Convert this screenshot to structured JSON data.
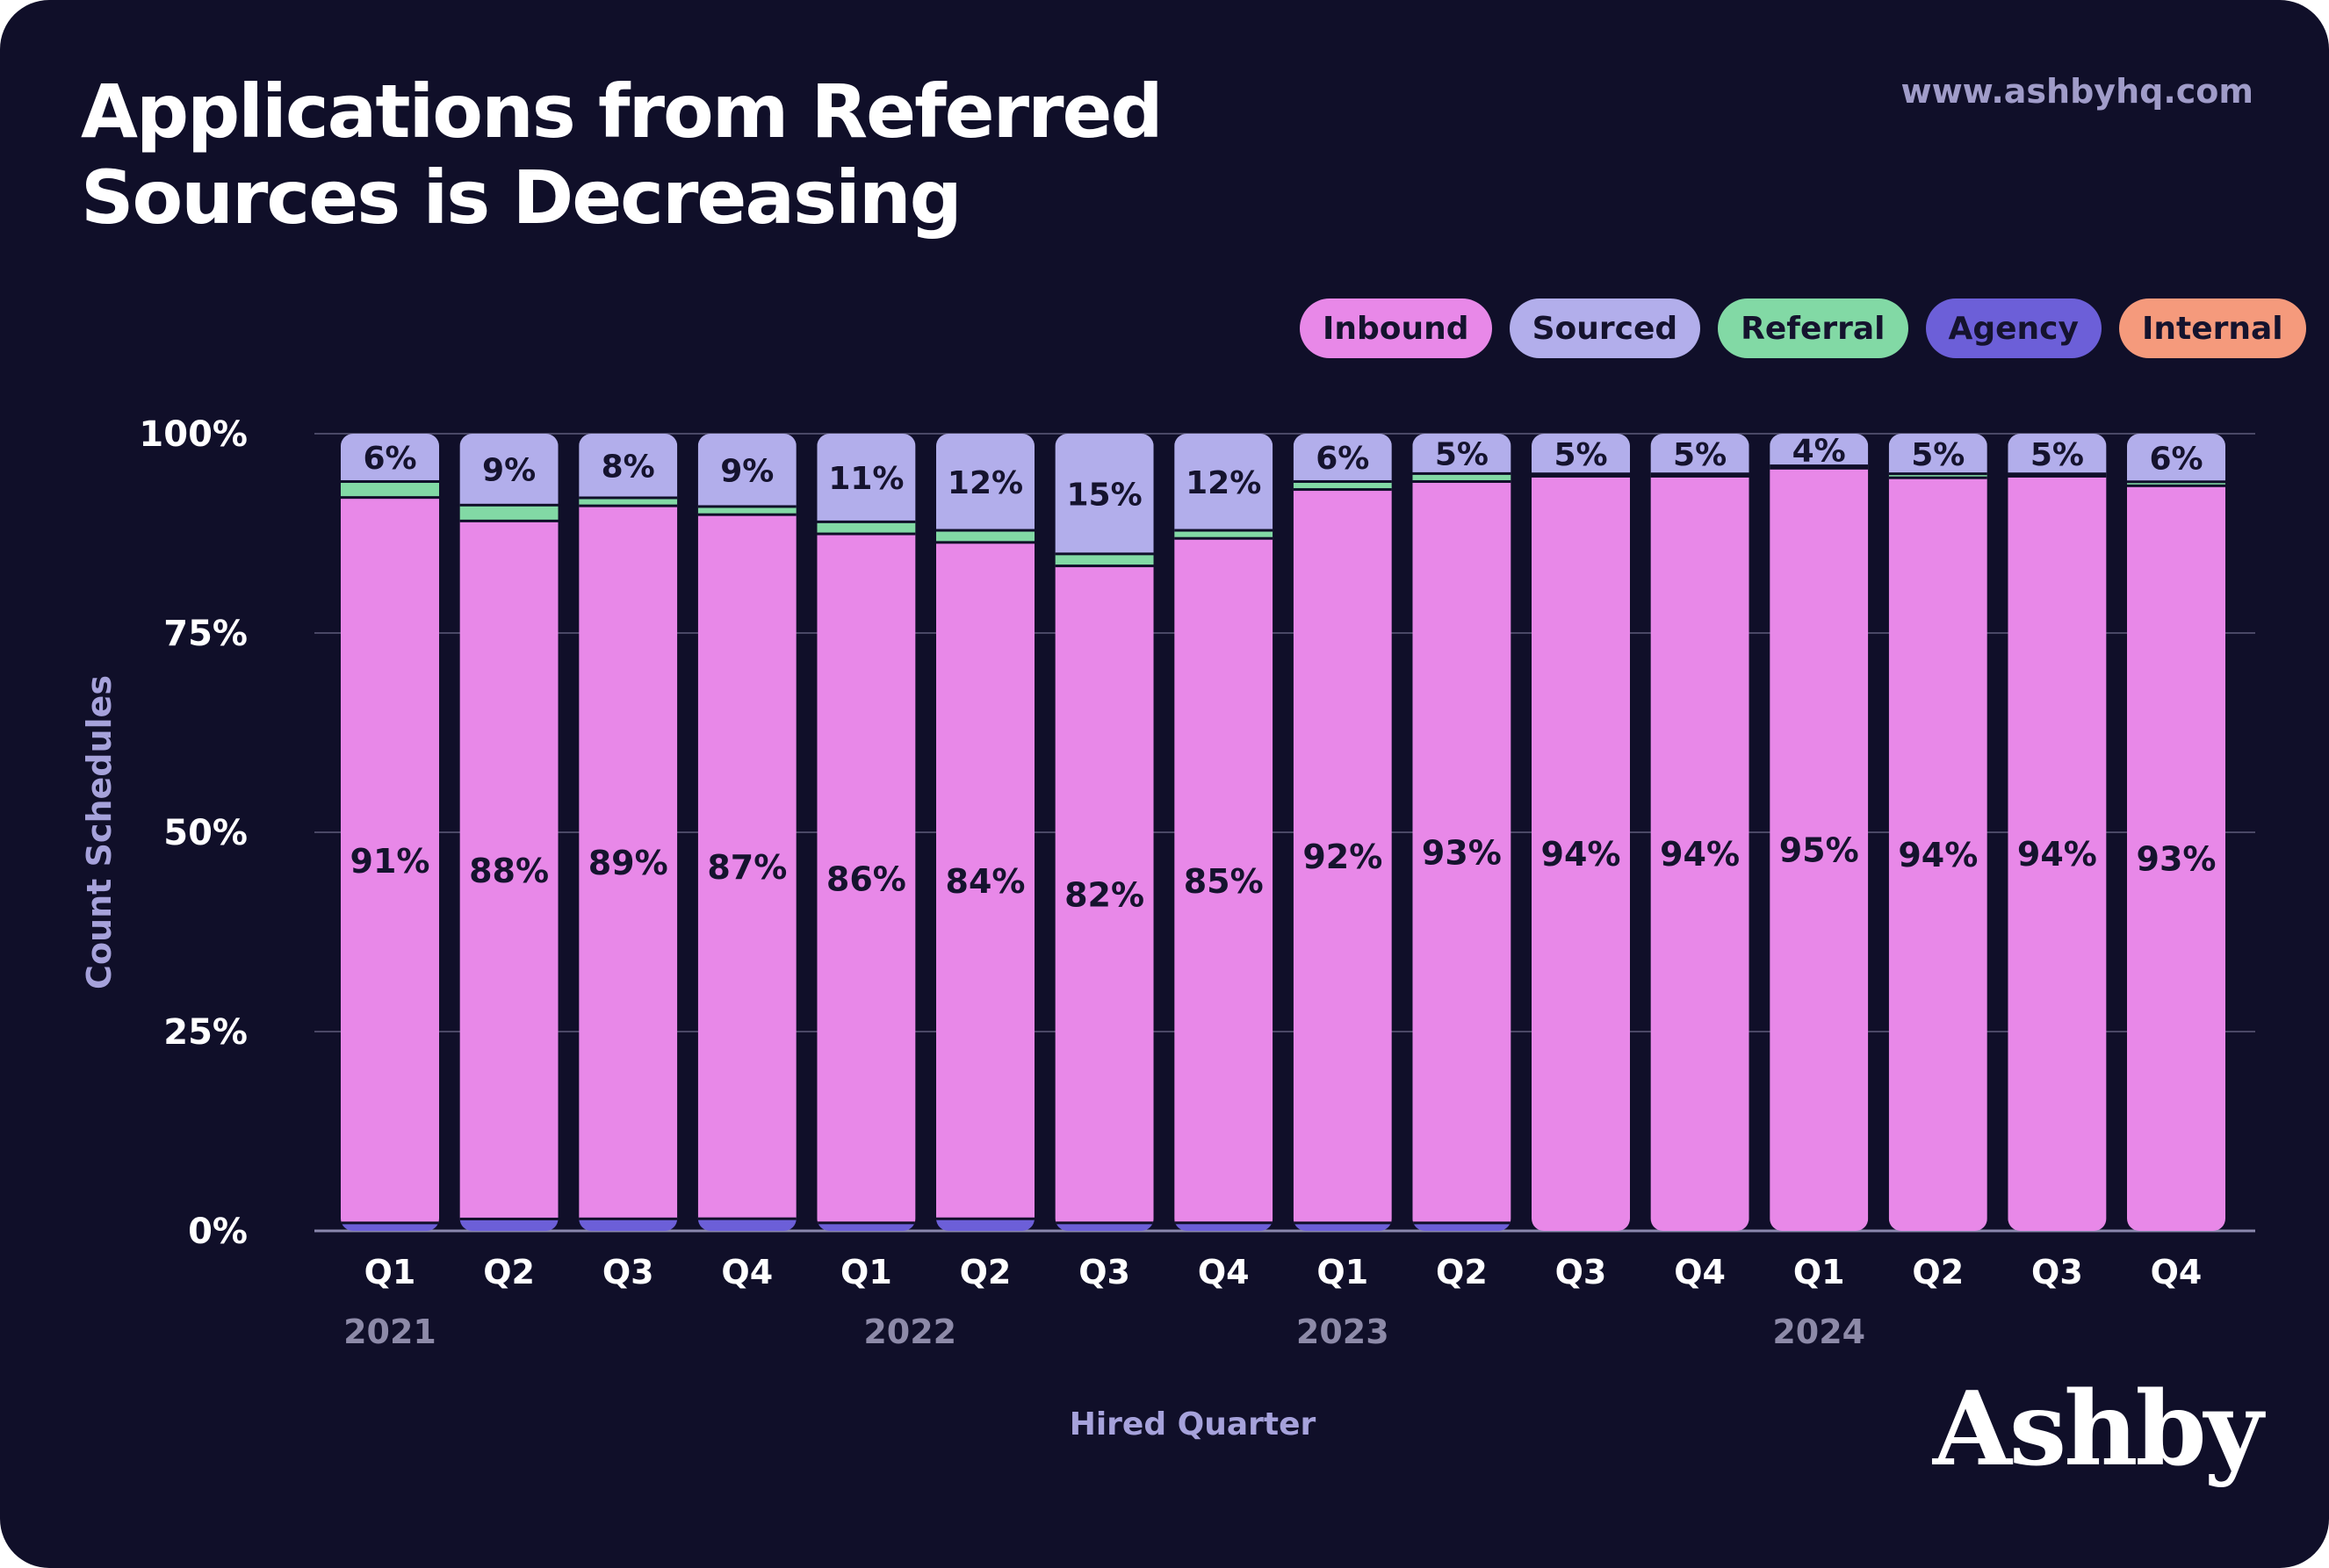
{
  "header": {
    "title_line1": "Applications from Referred",
    "title_line2": "Sources is Decreasing",
    "website": "www.ashbyhq.com",
    "brand": "Ashby"
  },
  "legend": [
    {
      "label": "Inbound",
      "color": "#e888e8"
    },
    {
      "label": "Sourced",
      "color": "#b2aeeb"
    },
    {
      "label": "Referral",
      "color": "#82d9a5"
    },
    {
      "label": "Agency",
      "color": "#6c5fd8"
    },
    {
      "label": "Internal",
      "color": "#f59a7c"
    }
  ],
  "chart_data": {
    "type": "bar",
    "stacked": true,
    "title": "Applications from Referred Sources is Decreasing",
    "xlabel": "Hired Quarter",
    "ylabel": "Count Schedules",
    "ylim": [
      0,
      100
    ],
    "y_ticks": [
      "0%",
      "25%",
      "50%",
      "75%",
      "100%"
    ],
    "grid": true,
    "legend_position": "top-right",
    "categories": [
      "Q1",
      "Q2",
      "Q3",
      "Q4",
      "Q1",
      "Q2",
      "Q3",
      "Q4",
      "Q1",
      "Q2",
      "Q3",
      "Q4",
      "Q1",
      "Q2",
      "Q3",
      "Q4"
    ],
    "year_groups": [
      {
        "label": "2021",
        "start": 0,
        "end": 3
      },
      {
        "label": "2022",
        "start": 4,
        "end": 7
      },
      {
        "label": "2023",
        "start": 8,
        "end": 11
      },
      {
        "label": "2024",
        "start": 12,
        "end": 15
      }
    ],
    "series": [
      {
        "name": "Inbound",
        "color": "#e888e8",
        "values": [
          91,
          88,
          89,
          87,
          86,
          84,
          82,
          85,
          92,
          93,
          94,
          94,
          95,
          94,
          94,
          93
        ],
        "labels": [
          "91%",
          "88%",
          "89%",
          "87%",
          "86%",
          "84%",
          "82%",
          "85%",
          "92%",
          "93%",
          "94%",
          "94%",
          "95%",
          "94%",
          "94%",
          "93%"
        ]
      },
      {
        "name": "Sourced",
        "color": "#b2aeeb",
        "values": [
          6,
          9,
          8,
          9,
          11,
          12,
          15,
          12,
          6,
          5,
          5,
          5,
          4,
          5,
          5,
          6
        ],
        "labels": [
          "6%",
          "9%",
          "8%",
          "9%",
          "11%",
          "12%",
          "15%",
          "12%",
          "6%",
          "5%",
          "5%",
          "5%",
          "4%",
          "5%",
          "5%",
          "6%"
        ]
      },
      {
        "name": "Referral",
        "color": "#82d9a5",
        "values": [
          2,
          2,
          1,
          1,
          1.5,
          1.5,
          1.5,
          1,
          1,
          1,
          0.3,
          0.3,
          0.3,
          0.5,
          0.3,
          0.5
        ]
      },
      {
        "name": "Agency",
        "color": "#6c5fd8",
        "values": [
          1,
          1.5,
          1.5,
          1.5,
          1,
          1.5,
          1,
          1,
          1,
          1,
          0,
          0,
          0,
          0,
          0,
          0
        ]
      },
      {
        "name": "Internal",
        "color": "#f59a7c",
        "values": [
          0,
          0,
          0,
          0,
          0,
          0,
          0,
          0,
          0,
          0,
          0,
          0,
          0,
          0,
          0,
          0
        ]
      }
    ]
  }
}
